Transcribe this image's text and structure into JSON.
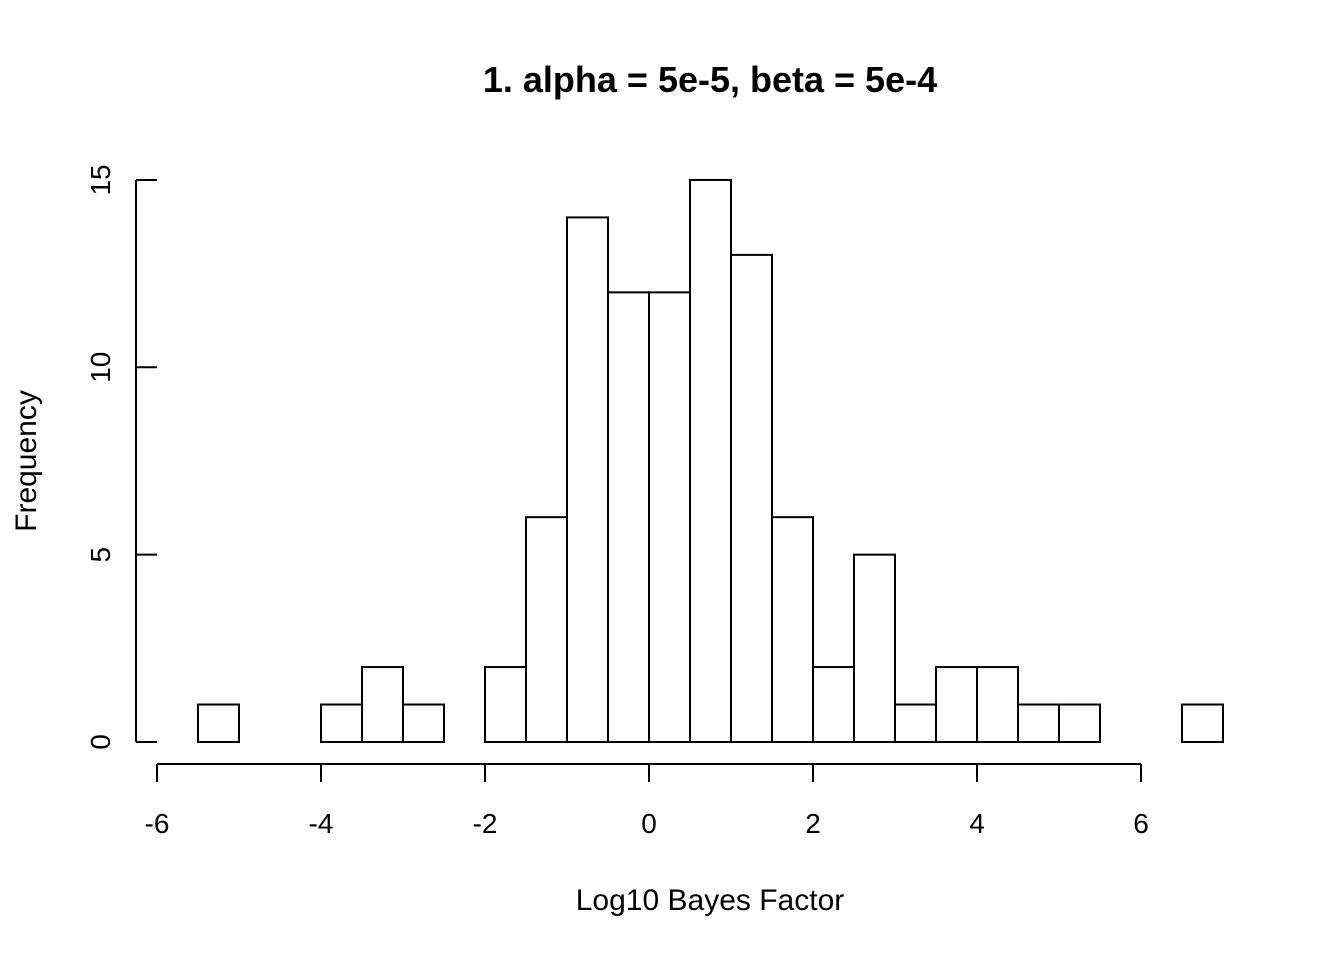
{
  "chart_data": {
    "type": "bar",
    "title": "1. alpha = 5e-5, beta = 5e-4",
    "xlabel": "Log10 Bayes Factor",
    "ylabel": "Frequency",
    "xlim": [
      -6,
      7
    ],
    "ylim": [
      0,
      15
    ],
    "x_ticks": [
      -6,
      -4,
      -2,
      0,
      2,
      4,
      6
    ],
    "y_ticks": [
      0,
      5,
      10,
      15
    ],
    "x_tick_labels": [
      "-6",
      "-4",
      "-2",
      "0",
      "2",
      "4",
      "6"
    ],
    "y_tick_labels": [
      "0",
      "5",
      "10",
      "15"
    ],
    "bin_width": 0.5,
    "bins": [
      {
        "x0": -5.5,
        "x1": -5.0,
        "count": 1
      },
      {
        "x0": -5.0,
        "x1": -4.5,
        "count": 0
      },
      {
        "x0": -4.5,
        "x1": -4.0,
        "count": 0
      },
      {
        "x0": -4.0,
        "x1": -3.5,
        "count": 1
      },
      {
        "x0": -3.5,
        "x1": -3.0,
        "count": 2
      },
      {
        "x0": -3.0,
        "x1": -2.5,
        "count": 1
      },
      {
        "x0": -2.5,
        "x1": -2.0,
        "count": 0
      },
      {
        "x0": -2.0,
        "x1": -1.5,
        "count": 2
      },
      {
        "x0": -1.5,
        "x1": -1.0,
        "count": 6
      },
      {
        "x0": -1.0,
        "x1": -0.5,
        "count": 14
      },
      {
        "x0": -0.5,
        "x1": 0.0,
        "count": 12
      },
      {
        "x0": 0.0,
        "x1": 0.5,
        "count": 12
      },
      {
        "x0": 0.5,
        "x1": 1.0,
        "count": 15
      },
      {
        "x0": 1.0,
        "x1": 1.5,
        "count": 13
      },
      {
        "x0": 1.5,
        "x1": 2.0,
        "count": 6
      },
      {
        "x0": 2.0,
        "x1": 2.5,
        "count": 2
      },
      {
        "x0": 2.5,
        "x1": 3.0,
        "count": 5
      },
      {
        "x0": 3.0,
        "x1": 3.5,
        "count": 1
      },
      {
        "x0": 3.5,
        "x1": 4.0,
        "count": 2
      },
      {
        "x0": 4.0,
        "x1": 4.5,
        "count": 2
      },
      {
        "x0": 4.5,
        "x1": 5.0,
        "count": 1
      },
      {
        "x0": 5.0,
        "x1": 5.5,
        "count": 1
      },
      {
        "x0": 5.5,
        "x1": 6.0,
        "count": 0
      },
      {
        "x0": 6.0,
        "x1": 6.5,
        "count": 0
      },
      {
        "x0": 6.5,
        "x1": 7.0,
        "count": 1
      }
    ],
    "grid": false,
    "colors": {
      "bar_fill": "#ffffff",
      "bar_stroke": "#000000"
    }
  }
}
